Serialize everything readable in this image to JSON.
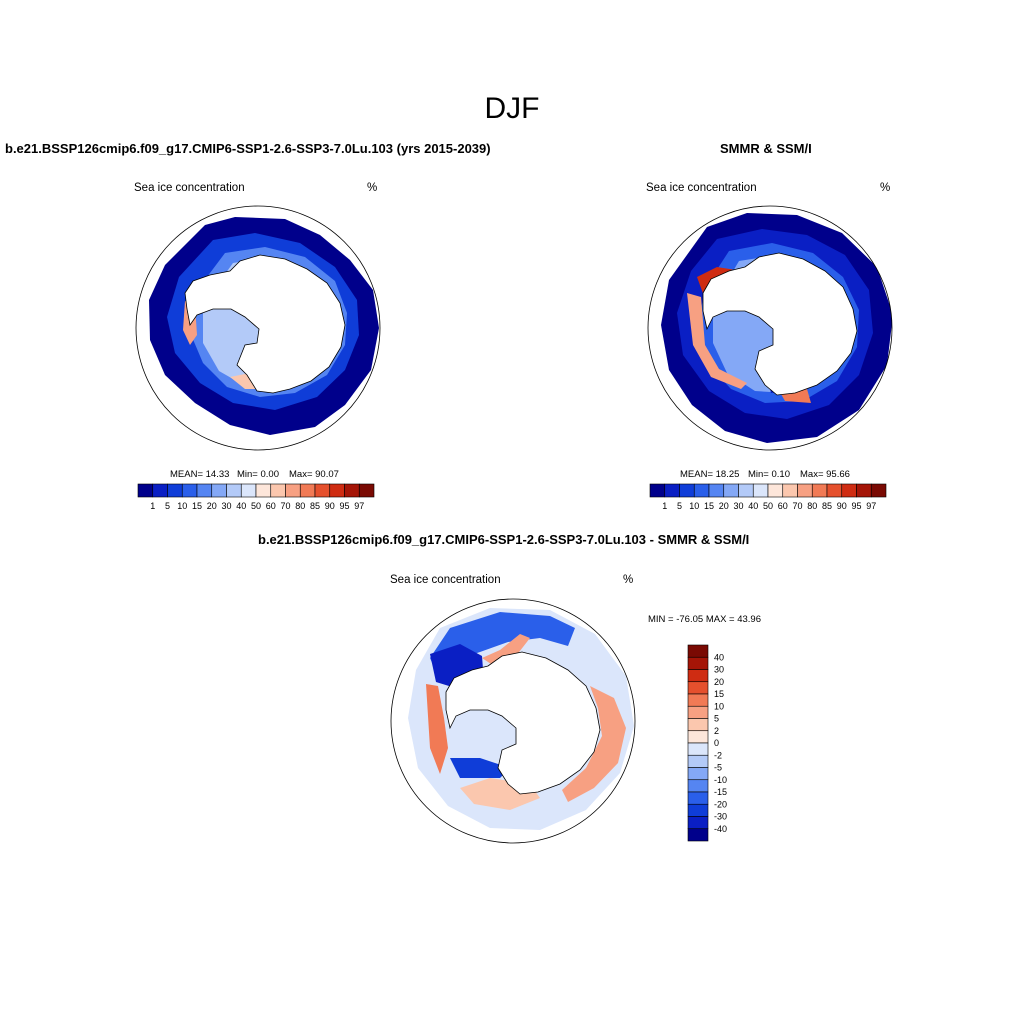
{
  "page": {
    "season": "DJF"
  },
  "chart_data": [
    {
      "type": "heatmap",
      "title": "b.e21.BSSP126cmip6.f09_g17.CMIP6-SSP1-2.6-SSP3-7.0Lu.103 (yrs 2015-2039)",
      "variable": "Sea ice concentration",
      "units": "%",
      "stats": {
        "mean": "MEAN=  14.33",
        "min": "Min=   0.00",
        "max": "Max=  90.07"
      },
      "stat_values": {
        "mean": 14.33,
        "min": 0.0,
        "max": 90.07
      },
      "colorbar_levels": [
        "1",
        "5",
        "10",
        "15",
        "20",
        "30",
        "40",
        "50",
        "60",
        "70",
        "80",
        "85",
        "90",
        "95",
        "97"
      ],
      "colorbar_colors": [
        "#00008b",
        "#0a1fc4",
        "#0f3dd8",
        "#2a5fea",
        "#5585f2",
        "#84a8f6",
        "#b3caf8",
        "#dbe6fb",
        "#fde6da",
        "#fbc7ae",
        "#f7a082",
        "#f17a55",
        "#e5502d",
        "#cf2c12",
        "#a51507",
        "#7a0a03"
      ]
    },
    {
      "type": "heatmap",
      "title": "SMMR & SSM/I",
      "variable": "Sea ice concentration",
      "units": "%",
      "stats": {
        "mean": "MEAN=  18.25",
        "min": "Min=   0.10",
        "max": "Max=  95.66"
      },
      "stat_values": {
        "mean": 18.25,
        "min": 0.1,
        "max": 95.66
      },
      "colorbar_levels": [
        "1",
        "5",
        "10",
        "15",
        "20",
        "30",
        "40",
        "50",
        "60",
        "70",
        "80",
        "85",
        "90",
        "95",
        "97"
      ],
      "colorbar_colors": [
        "#00008b",
        "#0a1fc4",
        "#0f3dd8",
        "#2a5fea",
        "#5585f2",
        "#84a8f6",
        "#b3caf8",
        "#dbe6fb",
        "#fde6da",
        "#fbc7ae",
        "#f7a082",
        "#f17a55",
        "#e5502d",
        "#cf2c12",
        "#a51507",
        "#7a0a03"
      ]
    },
    {
      "type": "heatmap",
      "title": "b.e21.BSSP126cmip6.f09_g17.CMIP6-SSP1-2.6-SSP3-7.0Lu.103 - SMMR & SSM/I",
      "variable": "Sea ice concentration",
      "units": "%",
      "range_text": "MIN = -76.05 MAX =  43.96",
      "range_values": {
        "min": -76.05,
        "max": 43.96
      },
      "colorbar_levels": [
        "40",
        "30",
        "20",
        "15",
        "10",
        "5",
        "2",
        "0",
        "-2",
        "-5",
        "-10",
        "-15",
        "-20",
        "-30",
        "-40"
      ],
      "colorbar_colors": [
        "#7a0a03",
        "#a51507",
        "#cf2c12",
        "#e5502d",
        "#f17a55",
        "#f7a082",
        "#fbc7ae",
        "#fde6da",
        "#dbe6fb",
        "#b3caf8",
        "#84a8f6",
        "#5585f2",
        "#2a5fea",
        "#0f3dd8",
        "#0a1fc4",
        "#00008b"
      ]
    }
  ]
}
